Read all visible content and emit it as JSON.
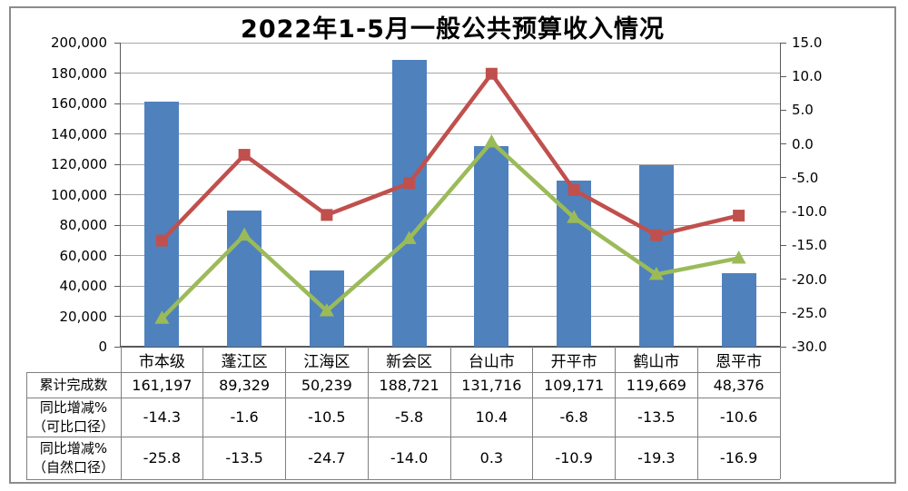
{
  "chart_data": {
    "type": "combo-bar-line",
    "title": "2022年1-5月一般公共预算收入情况",
    "categories": [
      "市本级",
      "蓬江区",
      "江海区",
      "新会区",
      "台山市",
      "开平市",
      "鹤山市",
      "恩平市"
    ],
    "series": [
      {
        "name": "累计完成数",
        "type": "bar",
        "axis": "left",
        "values": [
          161197,
          89329,
          50239,
          188721,
          131716,
          109171,
          119669,
          48376
        ]
      },
      {
        "name": "同比增减%（可比口径）",
        "type": "line",
        "marker": "square",
        "axis": "right",
        "values": [
          -14.3,
          -1.6,
          -10.5,
          -5.8,
          10.4,
          -6.8,
          -13.5,
          -10.6
        ]
      },
      {
        "name": "同比增减%（自然口径）",
        "type": "line",
        "marker": "triangle",
        "axis": "right",
        "values": [
          -25.8,
          -13.5,
          -24.7,
          -14.0,
          0.3,
          -10.9,
          -19.3,
          -16.9
        ]
      }
    ],
    "left_axis": {
      "min": 0,
      "max": 200000,
      "step": 20000,
      "tick_labels": [
        "200,000",
        "180,000",
        "160,000",
        "140,000",
        "120,000",
        "100,000",
        "80,000",
        "60,000",
        "40,000",
        "20,000",
        "0"
      ]
    },
    "right_axis": {
      "min": -30,
      "max": 15,
      "step": 5,
      "tick_labels": [
        "15.0",
        "10.0",
        "5.0",
        "0.0",
        "-5.0",
        "-10.0",
        "-15.0",
        "-20.0",
        "-25.0",
        "-30.0"
      ]
    },
    "grid": "horizontal-major",
    "legend": "none (data table below chart)"
  },
  "data_table": {
    "row_labels": [
      [
        "累计完成数"
      ],
      [
        "同比增减%",
        "（可比口径）"
      ],
      [
        "同比增减%",
        "（自然口径）"
      ]
    ],
    "rows": [
      [
        "161,197",
        "89,329",
        "50,239",
        "188,721",
        "131,716",
        "109,171",
        "119,669",
        "48,376"
      ],
      [
        "-14.3",
        "-1.6",
        "-10.5",
        "-5.8",
        "10.4",
        "-6.8",
        "-13.5",
        "-10.6"
      ],
      [
        "-25.8",
        "-13.5",
        "-24.7",
        "-14.0",
        "0.3",
        "-10.9",
        "-19.3",
        "-16.9"
      ]
    ]
  },
  "colors": {
    "bar": "#4F81BD",
    "line_comparable": "#C0504D",
    "line_natural": "#9BBB59",
    "gridline": "#A6A6A6",
    "axis": "#595959",
    "table_border": "#808080",
    "frame_border": "#8C8C8C",
    "text": "#000000",
    "background": "#FFFFFF"
  }
}
